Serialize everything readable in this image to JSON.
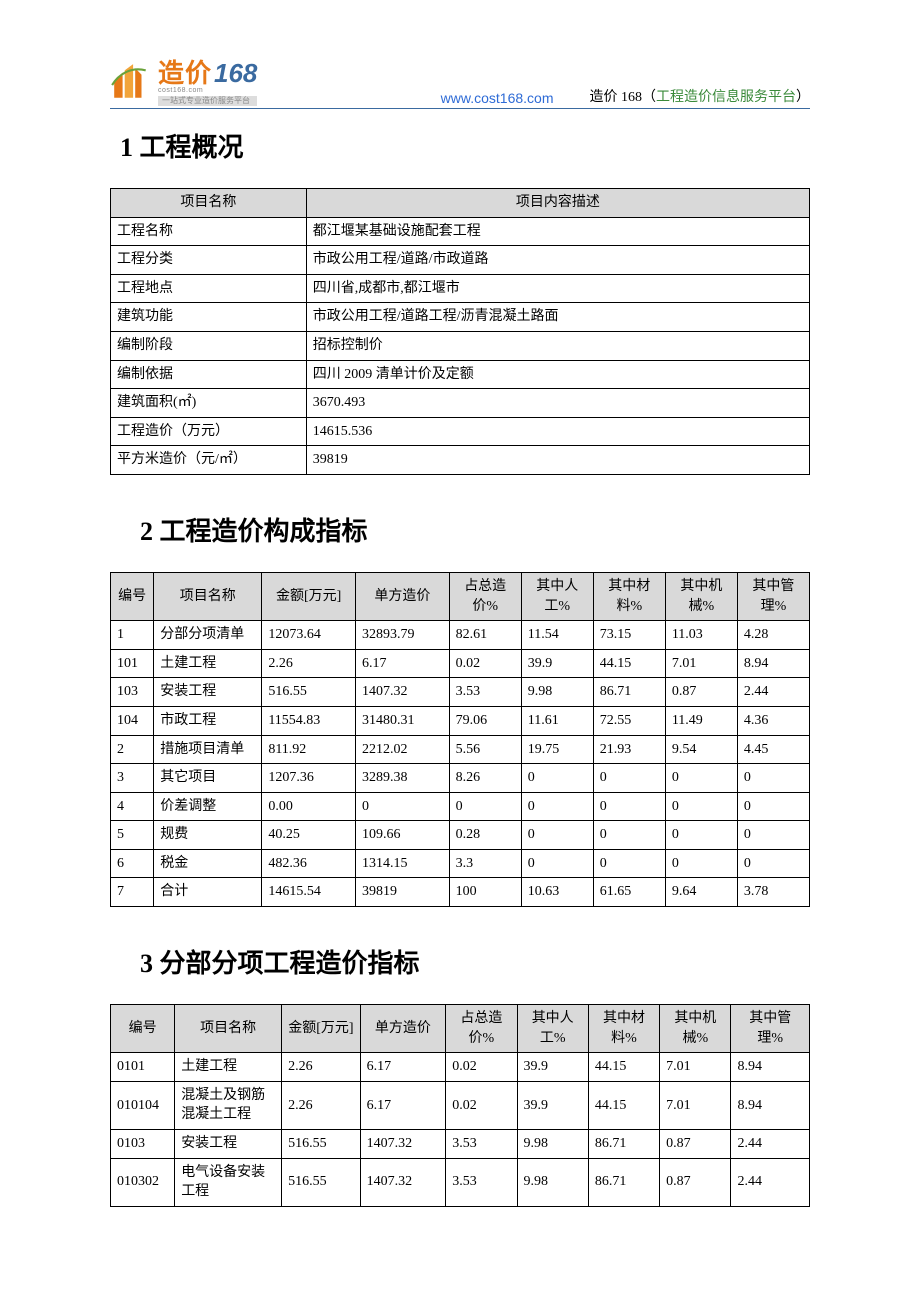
{
  "header": {
    "logo_cn": "造价",
    "logo_num": "168",
    "logo_url_small": "cost168.com",
    "logo_sub": "一站式专业造价服务平台",
    "url": "www.cost168.com",
    "right_plain": "造价 168（",
    "right_green": "工程造价信息服务平台",
    "right_close": "）"
  },
  "colors": {
    "header_border": "#3a6aa0",
    "link": "#2e6bd6",
    "green": "#3a8a3a",
    "logo_orange": "#e67817",
    "logo_blue": "#3a6aa0",
    "th_bg": "#d9d9d9",
    "border": "#000000",
    "text": "#000000",
    "bg": "#ffffff"
  },
  "section1": {
    "title": "1 工程概况",
    "columns": [
      "项目名称",
      "项目内容描述"
    ],
    "rows": [
      [
        "工程名称",
        "都江堰某基础设施配套工程"
      ],
      [
        "工程分类",
        "市政公用工程/道路/市政道路"
      ],
      [
        "工程地点",
        "四川省,成都市,都江堰市"
      ],
      [
        "建筑功能",
        "市政公用工程/道路工程/沥青混凝土路面"
      ],
      [
        "编制阶段",
        "招标控制价"
      ],
      [
        "编制依据",
        "四川 2009 清单计价及定额"
      ],
      [
        "建筑面积(㎡)",
        "3670.493"
      ],
      [
        "工程造价（万元）",
        "14615.536"
      ],
      [
        "平方米造价（元/㎡）",
        "39819"
      ]
    ]
  },
  "section2": {
    "title": "2 工程造价构成指标",
    "columns": [
      "编号",
      "项目名称",
      "金额[万元]",
      "单方造价",
      "占总造价%",
      "其中人工%",
      "其中材料%",
      "其中机械%",
      "其中管理%"
    ],
    "col_widths": [
      "6%",
      "15%",
      "13%",
      "13%",
      "10%",
      "10%",
      "10%",
      "10%",
      "10%"
    ],
    "rows": [
      [
        "1",
        "分部分项清单",
        "12073.64",
        "32893.79",
        "82.61",
        "11.54",
        "73.15",
        "11.03",
        "4.28"
      ],
      [
        "101",
        "土建工程",
        "2.26",
        "6.17",
        "0.02",
        "39.9",
        "44.15",
        "7.01",
        "8.94"
      ],
      [
        "103",
        "安装工程",
        "516.55",
        "1407.32",
        "3.53",
        "9.98",
        "86.71",
        "0.87",
        "2.44"
      ],
      [
        "104",
        "市政工程",
        "11554.83",
        "31480.31",
        "79.06",
        "11.61",
        "72.55",
        "11.49",
        "4.36"
      ],
      [
        "2",
        "措施项目清单",
        "811.92",
        "2212.02",
        "5.56",
        "19.75",
        "21.93",
        "9.54",
        "4.45"
      ],
      [
        "3",
        "其它项目",
        "1207.36",
        "3289.38",
        "8.26",
        "0",
        "0",
        "0",
        "0"
      ],
      [
        "4",
        "价差调整",
        "0.00",
        "0",
        "0",
        "0",
        "0",
        "0",
        "0"
      ],
      [
        "5",
        "规费",
        "40.25",
        "109.66",
        "0.28",
        "0",
        "0",
        "0",
        "0"
      ],
      [
        "6",
        "税金",
        "482.36",
        "1314.15",
        "3.3",
        "0",
        "0",
        "0",
        "0"
      ],
      [
        "7",
        "合计",
        "14615.54",
        "39819",
        "100",
        "10.63",
        "61.65",
        "9.64",
        "3.78"
      ]
    ]
  },
  "section3": {
    "title": "3 分部分项工程造价指标",
    "columns": [
      "编号",
      "项目名称",
      "金额[万元]",
      "单方造价",
      "占总造价%",
      "其中人工%",
      "其中材料%",
      "其中机械%",
      "其中管理%"
    ],
    "col_widths": [
      "9%",
      "15%",
      "11%",
      "12%",
      "10%",
      "10%",
      "10%",
      "10%",
      "11%"
    ],
    "rows": [
      [
        "0101",
        "土建工程",
        "2.26",
        "6.17",
        "0.02",
        "39.9",
        "44.15",
        "7.01",
        "8.94"
      ],
      [
        "010104",
        "混凝土及钢筋混凝土工程",
        "2.26",
        "6.17",
        "0.02",
        "39.9",
        "44.15",
        "7.01",
        "8.94"
      ],
      [
        "0103",
        "安装工程",
        "516.55",
        "1407.32",
        "3.53",
        "9.98",
        "86.71",
        "0.87",
        "2.44"
      ],
      [
        "010302",
        "电气设备安装工程",
        "516.55",
        "1407.32",
        "3.53",
        "9.98",
        "86.71",
        "0.87",
        "2.44"
      ]
    ]
  }
}
